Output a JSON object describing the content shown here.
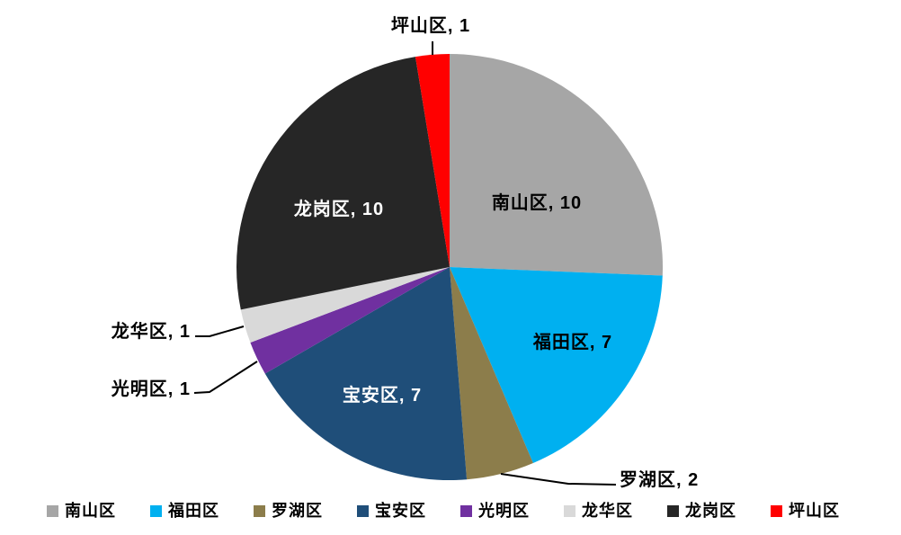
{
  "chart_data": {
    "type": "pie",
    "title": "",
    "categories": [
      "南山区",
      "福田区",
      "罗湖区",
      "宝安区",
      "光明区",
      "龙华区",
      "龙岗区",
      "坪山区"
    ],
    "values": [
      10,
      7,
      2,
      7,
      1,
      1,
      10,
      1
    ],
    "total": 39,
    "colors": [
      "#A6A6A6",
      "#00B0F0",
      "#8C7D4B",
      "#1F4E79",
      "#7030A0",
      "#D9D9D9",
      "#262626",
      "#FF0000"
    ],
    "data_labels": [
      "南山区, 10",
      "福田区, 7",
      "罗湖区, 2",
      "宝安区, 7",
      "光明区, 1",
      "龙华区, 1",
      "龙岗区, 10",
      "坪山区, 1"
    ],
    "label_format": "{name}, {value}",
    "start_angle_deg": 0,
    "direction": "clockwise",
    "legend_position": "bottom"
  },
  "style_colors": {
    "background": "#FFFFFF",
    "label_dark": "#000000",
    "label_light": "#FFFFFF",
    "leader_line": "#000000"
  }
}
